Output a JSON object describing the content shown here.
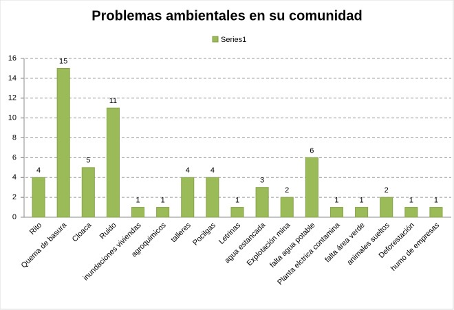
{
  "chart_data": {
    "type": "bar",
    "title": "Problemas ambientales en su comunidad",
    "categories": [
      "Rito",
      "Quema de basura",
      "Cloaca",
      "Ruido",
      "inundaciones viviendas",
      "agroquimicos",
      "talleres",
      "Pocilgas",
      "Letrinas",
      "agua estancada",
      "Explotación mina",
      "falta agua potable",
      "Planta elctrica contamina",
      "falta área verde",
      "animales sueltos",
      "Deforestación",
      "humo de empresas"
    ],
    "series": [
      {
        "name": "Series1",
        "color": "#9bbb59",
        "values": [
          4,
          15,
          5,
          11,
          1,
          1,
          4,
          4,
          1,
          3,
          2,
          6,
          1,
          1,
          2,
          1,
          1
        ]
      }
    ],
    "ylim": [
      0,
      16
    ],
    "yticks": [
      0,
      2,
      4,
      6,
      8,
      10,
      12,
      14,
      16
    ],
    "grid": true,
    "legend": "top"
  }
}
